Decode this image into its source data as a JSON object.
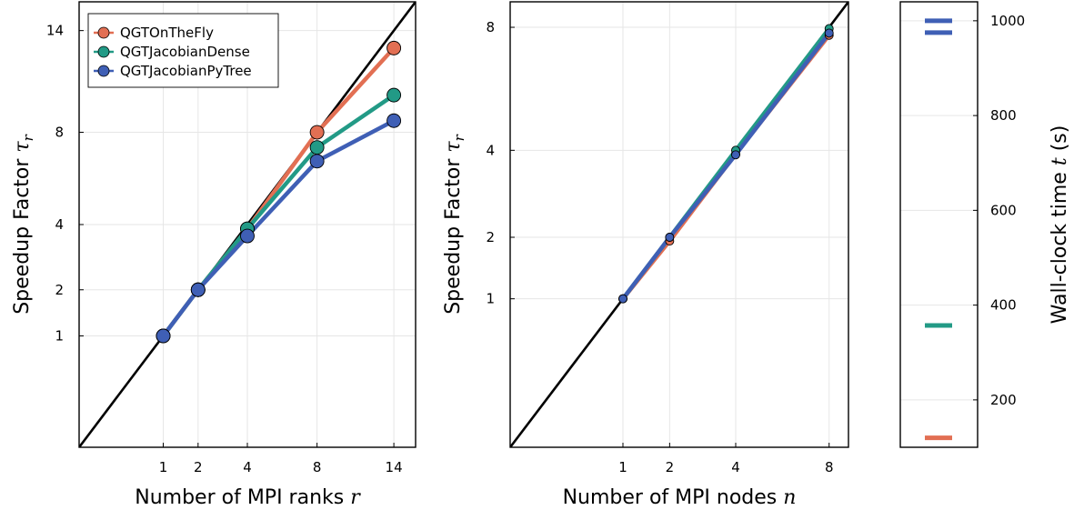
{
  "colors": {
    "QGTOnTheFly": "#e26f53",
    "QGTJacobianDense": "#229a86",
    "QGTJacobianPyTree": "#3f5fb5",
    "ideal": "#000000"
  },
  "chart_data": [
    {
      "type": "line",
      "xscale": "sqrt",
      "yscale": "sqrt",
      "xlim": [
        0,
        16
      ],
      "ylim": [
        0,
        16
      ],
      "xticks": [
        1,
        2,
        4,
        8,
        14
      ],
      "yticks": [
        1,
        2,
        4,
        8,
        14
      ],
      "xlabel": "Number of MPI ranks",
      "xlabel_var": "r",
      "ylabel": "Speedup Factor",
      "ylabel_var": "τ",
      "ylabel_sub": "r",
      "x": [
        1,
        2,
        4,
        8,
        14
      ],
      "ideal_line": true,
      "legend": "top-left",
      "grid": true,
      "series": [
        {
          "name": "QGTOnTheFly",
          "values": [
            1,
            2,
            3.85,
            8.0,
            12.85
          ]
        },
        {
          "name": "QGTJacobianDense",
          "values": [
            1,
            2,
            3.85,
            7.25,
            10.0
          ]
        },
        {
          "name": "QGTJacobianPyTree",
          "values": [
            1,
            2,
            3.6,
            6.6,
            8.6
          ]
        }
      ]
    },
    {
      "type": "line",
      "xscale": "sqrt",
      "yscale": "sqrt",
      "xlim": [
        0,
        9
      ],
      "ylim": [
        0,
        9
      ],
      "xticks": [
        1,
        2,
        4,
        8
      ],
      "yticks": [
        1,
        2,
        4,
        8
      ],
      "xlabel": "Number of MPI nodes",
      "xlabel_var": "n",
      "ylabel": "Speedup Factor",
      "ylabel_var": "τ",
      "ylabel_sub": "r",
      "x": [
        1,
        2,
        4,
        8
      ],
      "ideal_line": true,
      "grid": true,
      "series": [
        {
          "name": "QGTOnTheFly",
          "values": [
            1,
            1.93,
            3.9,
            7.7
          ]
        },
        {
          "name": "QGTJacobianDense",
          "values": [
            1,
            2.0,
            4.0,
            7.95
          ]
        },
        {
          "name": "QGTJacobianPyTree",
          "values": [
            1,
            2.0,
            3.88,
            7.78
          ]
        }
      ]
    },
    {
      "type": "colorbar",
      "ylim": [
        100,
        1040
      ],
      "yticks": [
        200,
        400,
        600,
        800,
        1000
      ],
      "ylabel": "Wall-clock time",
      "ylabel_var": "t",
      "ylabel_unit": "(s)",
      "markers": [
        {
          "name": "QGTJacobianPyTree",
          "value": 1000
        },
        {
          "name": "QGTJacobianPyTree",
          "value": 975
        },
        {
          "name": "QGTJacobianDense",
          "value": 357
        },
        {
          "name": "QGTOnTheFly",
          "value": 120
        }
      ]
    }
  ]
}
